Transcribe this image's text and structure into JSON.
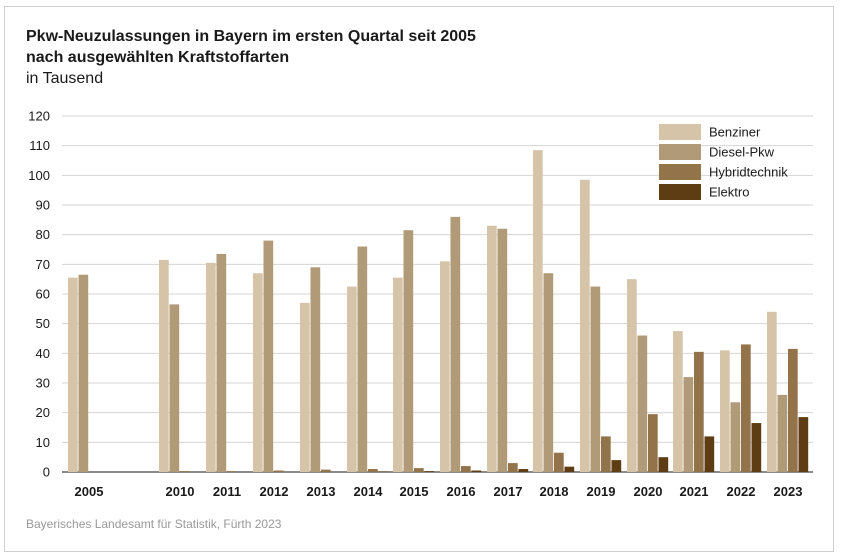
{
  "chart_data": {
    "type": "bar",
    "title": "Pkw-Neuzulassungen in Bayern im ersten Quartal seit 2005",
    "subtitle": "nach ausgewählten Kraftstoffarten",
    "unit": "in Tausend",
    "source": "Bayerisches Landesamt für Statistik, Fürth 2023",
    "categories": [
      "2005",
      "2010",
      "2011",
      "2012",
      "2013",
      "2014",
      "2015",
      "2016",
      "2017",
      "2018",
      "2019",
      "2020",
      "2021",
      "2022",
      "2023"
    ],
    "ylim": [
      0,
      120
    ],
    "yticks": [
      0,
      10,
      20,
      30,
      40,
      50,
      60,
      70,
      80,
      90,
      100,
      110,
      120
    ],
    "grid": true,
    "legend_position": "top-right",
    "series": [
      {
        "name": "Benziner",
        "color": "#d5c4a8",
        "values": [
          65.5,
          71.5,
          70.5,
          67,
          57,
          62.5,
          65.5,
          71,
          83,
          108.5,
          98.5,
          65,
          47.5,
          41,
          54
        ]
      },
      {
        "name": "Diesel-Pkw",
        "color": "#b19a78",
        "values": [
          66.5,
          56.5,
          73.5,
          78,
          69,
          76,
          81.5,
          86,
          82,
          67,
          62.5,
          46,
          32,
          23.5,
          26
        ]
      },
      {
        "name": "Hybridtechnik",
        "color": "#93734a",
        "values": [
          0,
          0.3,
          0.3,
          0.5,
          0.8,
          1,
          1.3,
          2,
          3,
          6.5,
          12,
          19.5,
          40.5,
          43,
          41.5
        ]
      },
      {
        "name": "Elektro",
        "color": "#5e3d14",
        "values": [
          0,
          0,
          0,
          0,
          0,
          0.2,
          0.3,
          0.5,
          1,
          1.8,
          4,
          5,
          12,
          16.5,
          18.5
        ]
      }
    ]
  }
}
